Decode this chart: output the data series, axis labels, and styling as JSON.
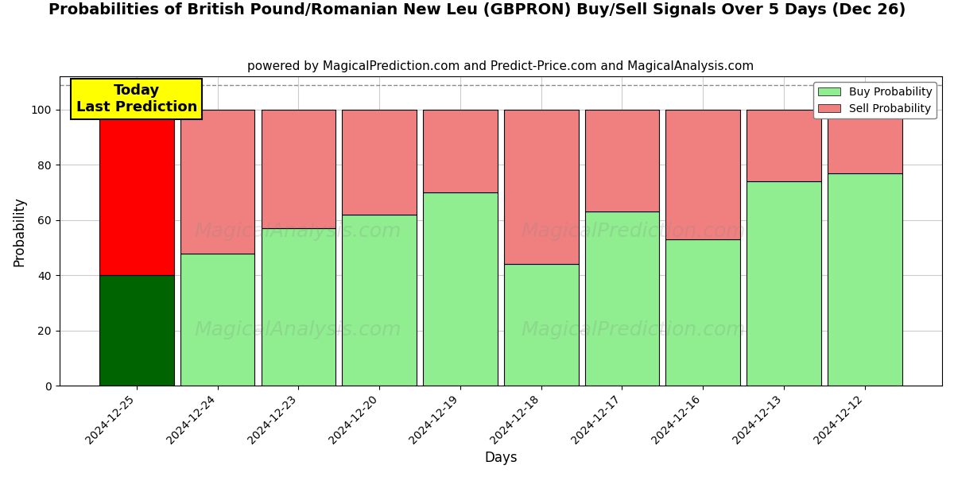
{
  "title": "Probabilities of British Pound/Romanian New Leu (GBPRON) Buy/Sell Signals Over 5 Days (Dec 26)",
  "subtitle": "powered by MagicalPrediction.com and Predict-Price.com and MagicalAnalysis.com",
  "xlabel": "Days",
  "ylabel": "Probability",
  "categories": [
    "2024-12-25",
    "2024-12-24",
    "2024-12-23",
    "2024-12-20",
    "2024-12-19",
    "2024-12-18",
    "2024-12-17",
    "2024-12-16",
    "2024-12-13",
    "2024-12-12"
  ],
  "buy_values": [
    40,
    48,
    57,
    62,
    70,
    44,
    63,
    53,
    74,
    77
  ],
  "sell_values": [
    60,
    52,
    43,
    38,
    30,
    56,
    37,
    47,
    26,
    23
  ],
  "buy_colors": [
    "#006400",
    "#90EE90",
    "#90EE90",
    "#90EE90",
    "#90EE90",
    "#90EE90",
    "#90EE90",
    "#90EE90",
    "#90EE90",
    "#90EE90"
  ],
  "sell_colors": [
    "#FF0000",
    "#F08080",
    "#F08080",
    "#F08080",
    "#F08080",
    "#F08080",
    "#F08080",
    "#F08080",
    "#F08080",
    "#F08080"
  ],
  "bar_edge_color": "black",
  "bar_edge_width": 0.8,
  "today_box_color": "#FFFF00",
  "today_text": "Today\nLast Prediction",
  "legend_buy_color": "#90EE90",
  "legend_sell_color": "#F08080",
  "legend_buy_label": "Buy Probability",
  "legend_sell_label": "Sell Probability",
  "ylim": [
    0,
    112
  ],
  "yticks": [
    0,
    20,
    40,
    60,
    80,
    100
  ],
  "dashed_line_y": 109,
  "watermark1": "MagicalAnalysis.com",
  "watermark2": "MagicalPrediction.com",
  "background_color": "#ffffff",
  "grid_color": "#cccccc",
  "title_fontsize": 14,
  "subtitle_fontsize": 11,
  "bar_width": 0.92
}
